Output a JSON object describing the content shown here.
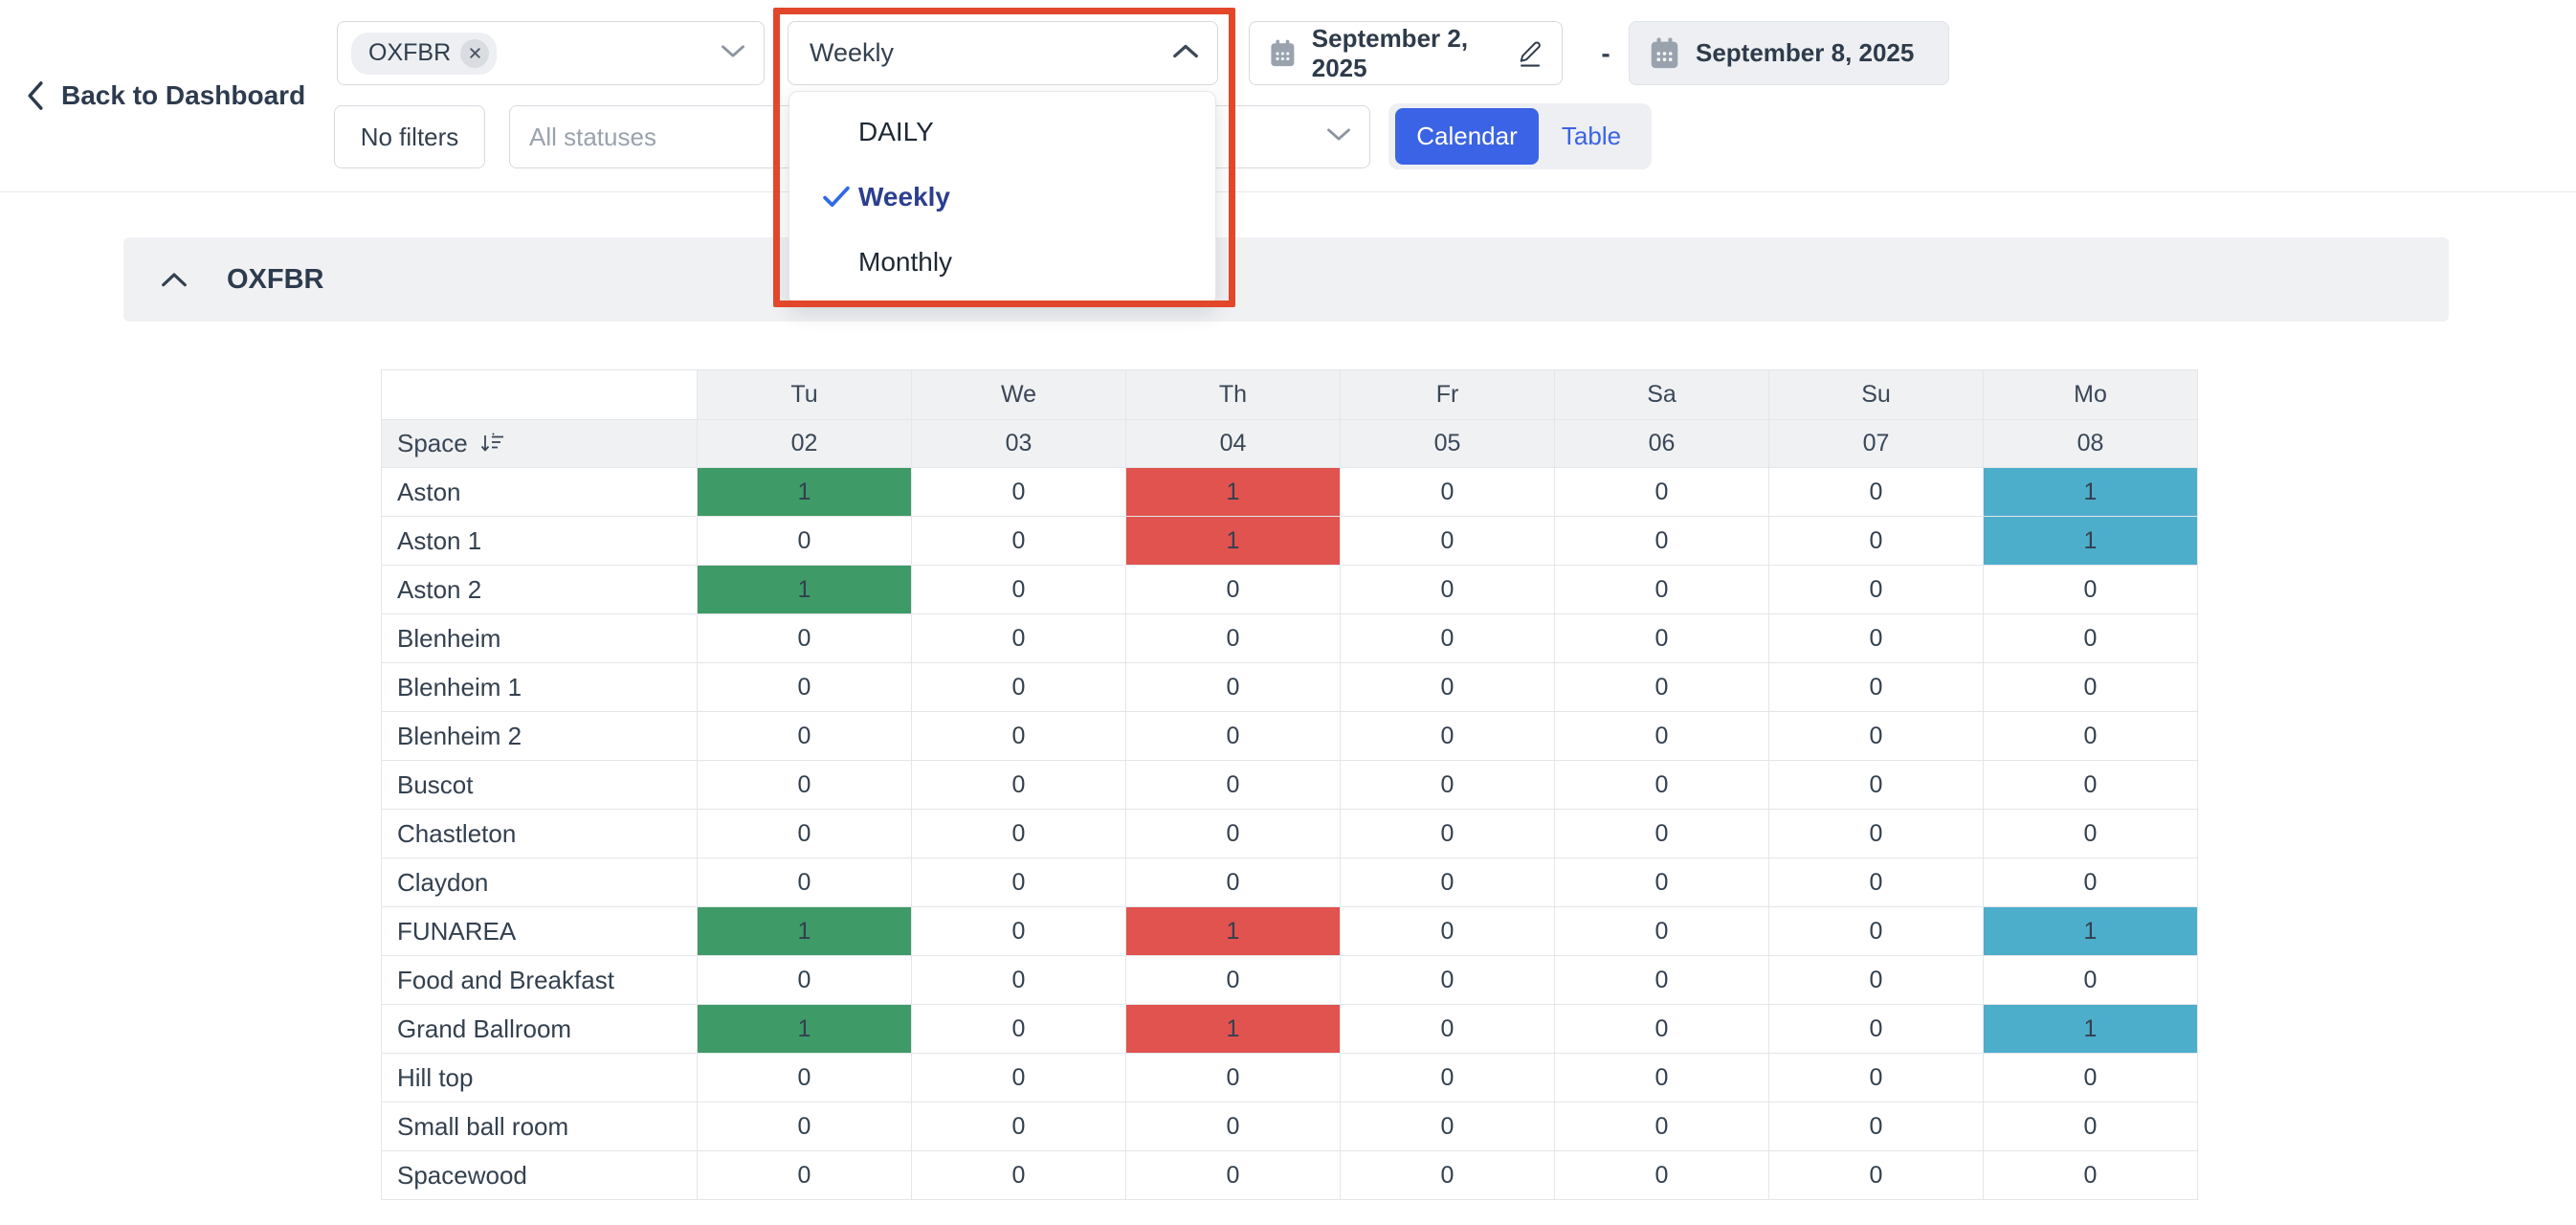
{
  "nav": {
    "back_label": "Back to Dashboard"
  },
  "toolbar": {
    "property_select": {
      "chip_label": "OXFBR"
    },
    "period_select": {
      "value": "Weekly"
    },
    "period_menu": {
      "options": [
        {
          "label": "DAILY",
          "selected": false
        },
        {
          "label": "Weekly",
          "selected": true
        },
        {
          "label": "Monthly",
          "selected": false
        }
      ]
    },
    "date_range": {
      "start": "September 2, 2025",
      "separator": "-",
      "end": "September 8, 2025"
    },
    "no_filters_label": "No filters",
    "statuses_placeholder": "All statuses",
    "view_toggle": {
      "calendar_label": "Calendar",
      "table_label": "Table",
      "active": "Calendar"
    }
  },
  "section": {
    "title": "OXFBR"
  },
  "grid": {
    "corner_label": "Space",
    "day_headers": [
      "Tu",
      "We",
      "Th",
      "Fr",
      "Sa",
      "Su",
      "Mo"
    ],
    "date_headers": [
      "02",
      "03",
      "04",
      "05",
      "06",
      "07",
      "08"
    ],
    "rows": [
      {
        "name": "Aston",
        "values": [
          "1",
          "0",
          "1",
          "0",
          "0",
          "0",
          "1"
        ],
        "cell_colors": [
          "green",
          null,
          "red",
          null,
          null,
          null,
          "teal"
        ]
      },
      {
        "name": "Aston 1",
        "values": [
          "0",
          "0",
          "1",
          "0",
          "0",
          "0",
          "1"
        ],
        "cell_colors": [
          null,
          null,
          "red",
          null,
          null,
          null,
          "teal"
        ]
      },
      {
        "name": "Aston 2",
        "values": [
          "1",
          "0",
          "0",
          "0",
          "0",
          "0",
          "0"
        ],
        "cell_colors": [
          "green",
          null,
          null,
          null,
          null,
          null,
          null
        ]
      },
      {
        "name": "Blenheim",
        "values": [
          "0",
          "0",
          "0",
          "0",
          "0",
          "0",
          "0"
        ],
        "cell_colors": [
          null,
          null,
          null,
          null,
          null,
          null,
          null
        ]
      },
      {
        "name": "Blenheim 1",
        "values": [
          "0",
          "0",
          "0",
          "0",
          "0",
          "0",
          "0"
        ],
        "cell_colors": [
          null,
          null,
          null,
          null,
          null,
          null,
          null
        ]
      },
      {
        "name": "Blenheim 2",
        "values": [
          "0",
          "0",
          "0",
          "0",
          "0",
          "0",
          "0"
        ],
        "cell_colors": [
          null,
          null,
          null,
          null,
          null,
          null,
          null
        ]
      },
      {
        "name": "Buscot",
        "values": [
          "0",
          "0",
          "0",
          "0",
          "0",
          "0",
          "0"
        ],
        "cell_colors": [
          null,
          null,
          null,
          null,
          null,
          null,
          null
        ]
      },
      {
        "name": "Chastleton",
        "values": [
          "0",
          "0",
          "0",
          "0",
          "0",
          "0",
          "0"
        ],
        "cell_colors": [
          null,
          null,
          null,
          null,
          null,
          null,
          null
        ]
      },
      {
        "name": "Claydon",
        "values": [
          "0",
          "0",
          "0",
          "0",
          "0",
          "0",
          "0"
        ],
        "cell_colors": [
          null,
          null,
          null,
          null,
          null,
          null,
          null
        ]
      },
      {
        "name": "FUNAREA",
        "values": [
          "1",
          "0",
          "1",
          "0",
          "0",
          "0",
          "1"
        ],
        "cell_colors": [
          "green",
          null,
          "red",
          null,
          null,
          null,
          "teal"
        ]
      },
      {
        "name": "Food and Breakfast",
        "values": [
          "0",
          "0",
          "0",
          "0",
          "0",
          "0",
          "0"
        ],
        "cell_colors": [
          null,
          null,
          null,
          null,
          null,
          null,
          null
        ]
      },
      {
        "name": "Grand Ballroom",
        "values": [
          "1",
          "0",
          "1",
          "0",
          "0",
          "0",
          "1"
        ],
        "cell_colors": [
          "green",
          null,
          "red",
          null,
          null,
          null,
          "teal"
        ]
      },
      {
        "name": "Hill top",
        "values": [
          "0",
          "0",
          "0",
          "0",
          "0",
          "0",
          "0"
        ],
        "cell_colors": [
          null,
          null,
          null,
          null,
          null,
          null,
          null
        ]
      },
      {
        "name": "Small ball room",
        "values": [
          "0",
          "0",
          "0",
          "0",
          "0",
          "0",
          "0"
        ],
        "cell_colors": [
          null,
          null,
          null,
          null,
          null,
          null,
          null
        ]
      },
      {
        "name": "Spacewood",
        "values": [
          "0",
          "0",
          "0",
          "0",
          "0",
          "0",
          "0"
        ],
        "cell_colors": [
          null,
          null,
          null,
          null,
          null,
          null,
          null
        ]
      }
    ]
  },
  "colors": {
    "booked_green": "#3E9A67",
    "blocked_red": "#E0534F",
    "pending_teal": "#4DAECB",
    "accent_blue": "#3B63E5",
    "annotation_red": "#E2472B"
  }
}
